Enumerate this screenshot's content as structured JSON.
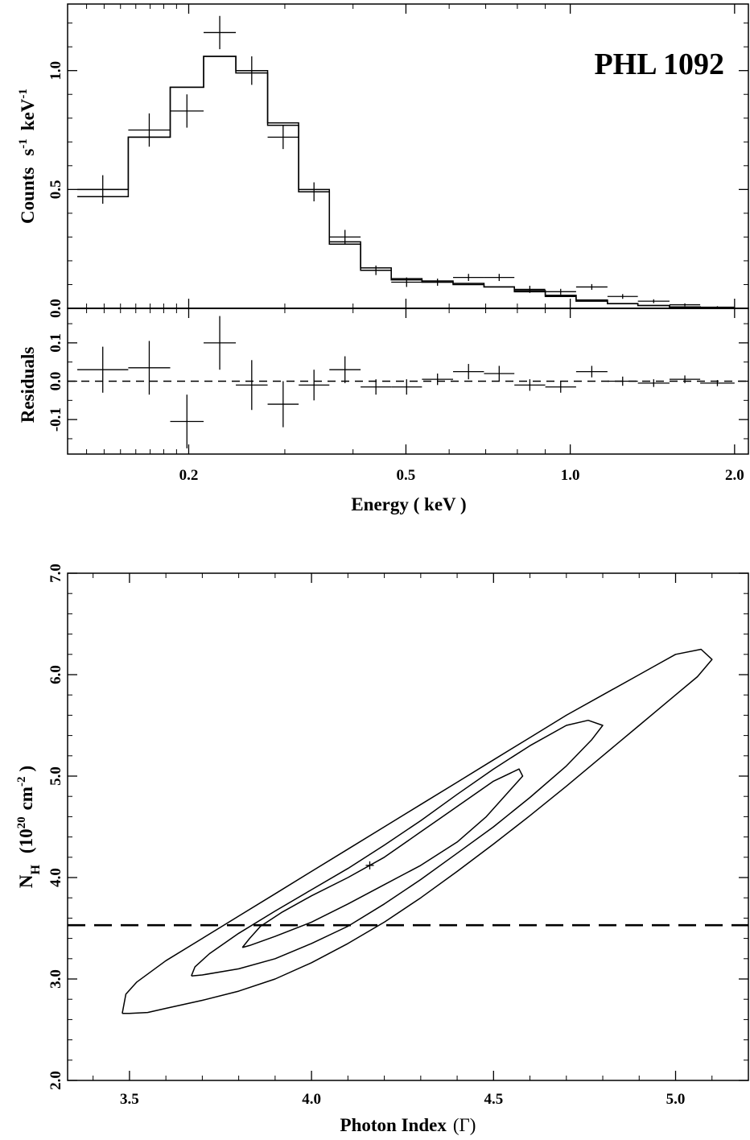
{
  "chart_data": [
    {
      "type": "step-spectrum",
      "panel": "spectrum",
      "annotation": "PHL 1092",
      "xlabel": "Energy  ( keV )",
      "ylabel": "Counts  s-1  keV-1",
      "ylabel_parts": {
        "a": "Counts",
        "b": "s",
        "c": "-1",
        "d": "keV",
        "e": "-1"
      },
      "x_scale": "log",
      "xlim": [
        0.12,
        2.12
      ],
      "ylim": [
        0.0,
        1.28
      ],
      "x_ticks": [
        0.2,
        0.5,
        1.0,
        2.0
      ],
      "x_tick_labels": [
        "0.2",
        "0.5",
        "1.0",
        "2.0"
      ],
      "y_ticks": [
        0.0,
        0.5,
        1.0
      ],
      "y_tick_labels": [
        "0.0",
        "0.5",
        "1.0"
      ],
      "model_bin_edges": [
        0.125,
        0.155,
        0.185,
        0.213,
        0.244,
        0.279,
        0.318,
        0.362,
        0.413,
        0.47,
        0.535,
        0.61,
        0.695,
        0.79,
        0.9,
        1.025,
        1.17,
        1.33,
        1.52,
        1.73,
        2.0
      ],
      "model_a": [
        0.47,
        0.72,
        0.93,
        1.06,
        0.99,
        0.78,
        0.49,
        0.27,
        0.16,
        0.12,
        0.11,
        0.1,
        0.09,
        0.07,
        0.05,
        0.03,
        0.02,
        0.012,
        0.006,
        0.003
      ],
      "model_b": [
        0.5,
        0.72,
        0.93,
        1.06,
        1.0,
        0.77,
        0.5,
        0.28,
        0.17,
        0.125,
        0.115,
        0.105,
        0.09,
        0.075,
        0.055,
        0.035,
        0.02,
        0.012,
        0.006,
        0.003
      ],
      "data": [
        {
          "x": 0.139,
          "xlo": 0.125,
          "xhi": 0.155,
          "y": 0.5,
          "err": 0.06
        },
        {
          "x": 0.17,
          "xlo": 0.155,
          "xhi": 0.185,
          "y": 0.75,
          "err": 0.07
        },
        {
          "x": 0.199,
          "xlo": 0.185,
          "xhi": 0.213,
          "y": 0.83,
          "err": 0.07
        },
        {
          "x": 0.228,
          "xlo": 0.213,
          "xhi": 0.244,
          "y": 1.16,
          "err": 0.07
        },
        {
          "x": 0.261,
          "xlo": 0.244,
          "xhi": 0.279,
          "y": 1.0,
          "err": 0.06
        },
        {
          "x": 0.298,
          "xlo": 0.279,
          "xhi": 0.318,
          "y": 0.72,
          "err": 0.05
        },
        {
          "x": 0.339,
          "xlo": 0.318,
          "xhi": 0.362,
          "y": 0.49,
          "err": 0.04
        },
        {
          "x": 0.387,
          "xlo": 0.362,
          "xhi": 0.413,
          "y": 0.3,
          "err": 0.03
        },
        {
          "x": 0.44,
          "xlo": 0.413,
          "xhi": 0.47,
          "y": 0.16,
          "err": 0.02
        },
        {
          "x": 0.5,
          "xlo": 0.47,
          "xhi": 0.535,
          "y": 0.11,
          "err": 0.02
        },
        {
          "x": 0.571,
          "xlo": 0.535,
          "xhi": 0.61,
          "y": 0.11,
          "err": 0.015
        },
        {
          "x": 0.651,
          "xlo": 0.61,
          "xhi": 0.695,
          "y": 0.13,
          "err": 0.015
        },
        {
          "x": 0.741,
          "xlo": 0.695,
          "xhi": 0.79,
          "y": 0.13,
          "err": 0.015
        },
        {
          "x": 0.843,
          "xlo": 0.79,
          "xhi": 0.9,
          "y": 0.08,
          "err": 0.015
        },
        {
          "x": 0.96,
          "xlo": 0.9,
          "xhi": 1.025,
          "y": 0.07,
          "err": 0.012
        },
        {
          "x": 1.095,
          "xlo": 1.025,
          "xhi": 1.17,
          "y": 0.09,
          "err": 0.012
        },
        {
          "x": 1.25,
          "xlo": 1.17,
          "xhi": 1.33,
          "y": 0.05,
          "err": 0.01
        },
        {
          "x": 1.42,
          "xlo": 1.33,
          "xhi": 1.52,
          "y": 0.03,
          "err": 0.008
        },
        {
          "x": 1.62,
          "xlo": 1.52,
          "xhi": 1.73,
          "y": 0.015,
          "err": 0.006
        },
        {
          "x": 1.86,
          "xlo": 1.73,
          "xhi": 2.0,
          "y": 0.005,
          "err": 0.004
        }
      ]
    },
    {
      "type": "residuals",
      "panel": "residuals",
      "ylabel": "Residuals",
      "x_scale": "log",
      "xlim": [
        0.12,
        2.12
      ],
      "ylim": [
        -0.19,
        0.19
      ],
      "y_ticks": [
        -0.1,
        0.0,
        0.1
      ],
      "y_tick_labels": [
        "-0.1",
        "0.0",
        "0.1"
      ],
      "zero_line": "dashed",
      "data": [
        {
          "xlo": 0.125,
          "xhi": 0.155,
          "y": 0.03,
          "err": 0.06
        },
        {
          "xlo": 0.155,
          "xhi": 0.185,
          "y": 0.035,
          "err": 0.07
        },
        {
          "xlo": 0.185,
          "xhi": 0.213,
          "y": -0.105,
          "err": 0.07
        },
        {
          "xlo": 0.213,
          "xhi": 0.244,
          "y": 0.1,
          "err": 0.07
        },
        {
          "xlo": 0.244,
          "xhi": 0.279,
          "y": -0.01,
          "err": 0.065
        },
        {
          "xlo": 0.279,
          "xhi": 0.318,
          "y": -0.06,
          "err": 0.06
        },
        {
          "xlo": 0.318,
          "xhi": 0.362,
          "y": -0.01,
          "err": 0.04
        },
        {
          "xlo": 0.362,
          "xhi": 0.413,
          "y": 0.03,
          "err": 0.035
        },
        {
          "xlo": 0.413,
          "xhi": 0.47,
          "y": -0.015,
          "err": 0.02
        },
        {
          "xlo": 0.47,
          "xhi": 0.535,
          "y": -0.015,
          "err": 0.02
        },
        {
          "xlo": 0.535,
          "xhi": 0.61,
          "y": 0.005,
          "err": 0.015
        },
        {
          "xlo": 0.61,
          "xhi": 0.695,
          "y": 0.025,
          "err": 0.02
        },
        {
          "xlo": 0.695,
          "xhi": 0.79,
          "y": 0.02,
          "err": 0.02
        },
        {
          "xlo": 0.79,
          "xhi": 0.9,
          "y": -0.01,
          "err": 0.015
        },
        {
          "xlo": 0.9,
          "xhi": 1.025,
          "y": -0.015,
          "err": 0.015
        },
        {
          "xlo": 1.025,
          "xhi": 1.17,
          "y": 0.025,
          "err": 0.015
        },
        {
          "xlo": 1.17,
          "xhi": 1.33,
          "y": 0.0,
          "err": 0.012
        },
        {
          "xlo": 1.33,
          "xhi": 1.52,
          "y": -0.005,
          "err": 0.01
        },
        {
          "xlo": 1.52,
          "xhi": 1.73,
          "y": 0.005,
          "err": 0.01
        },
        {
          "xlo": 1.73,
          "xhi": 2.0,
          "y": -0.005,
          "err": 0.008
        }
      ]
    },
    {
      "type": "contour",
      "panel": "contour",
      "xlabel": "Photon Index",
      "xlabel_symbol": "(Γ)",
      "ylabel_parts": {
        "a": "N",
        "b": "H",
        "c": "(10",
        "d": "20",
        "e": "cm",
        "f": "-2",
        "g": ")"
      },
      "xlim": [
        3.33,
        5.2
      ],
      "ylim": [
        2.0,
        7.0
      ],
      "x_ticks": [
        3.5,
        4.0,
        4.5,
        5.0
      ],
      "x_tick_labels": [
        "3.5",
        "4.0",
        "4.5",
        "5.0"
      ],
      "y_ticks": [
        2.0,
        3.0,
        4.0,
        5.0,
        6.0,
        7.0
      ],
      "y_tick_labels": [
        "2.0",
        "3.0",
        "4.0",
        "5.0",
        "6.0",
        "7.0"
      ],
      "best_fit": {
        "x": 4.16,
        "y": 4.12
      },
      "reference_line": {
        "y": 3.53,
        "style": "dashed"
      },
      "contours": [
        {
          "name": "inner",
          "points": [
            [
              3.81,
              3.31
            ],
            [
              3.83,
              3.4
            ],
            [
              3.86,
              3.52
            ],
            [
              3.92,
              3.66
            ],
            [
              4.0,
              3.82
            ],
            [
              4.1,
              4.0
            ],
            [
              4.2,
              4.2
            ],
            [
              4.3,
              4.45
            ],
            [
              4.4,
              4.7
            ],
            [
              4.5,
              4.95
            ],
            [
              4.57,
              5.07
            ],
            [
              4.58,
              5.0
            ],
            [
              4.55,
              4.88
            ],
            [
              4.48,
              4.6
            ],
            [
              4.4,
              4.35
            ],
            [
              4.3,
              4.12
            ],
            [
              4.2,
              3.93
            ],
            [
              4.1,
              3.74
            ],
            [
              4.0,
              3.56
            ],
            [
              3.9,
              3.42
            ],
            [
              3.83,
              3.33
            ],
            [
              3.81,
              3.31
            ]
          ]
        },
        {
          "name": "middle",
          "points": [
            [
              3.67,
              3.03
            ],
            [
              3.68,
              3.12
            ],
            [
              3.72,
              3.25
            ],
            [
              3.8,
              3.45
            ],
            [
              3.9,
              3.67
            ],
            [
              4.0,
              3.88
            ],
            [
              4.1,
              4.09
            ],
            [
              4.2,
              4.32
            ],
            [
              4.3,
              4.56
            ],
            [
              4.4,
              4.82
            ],
            [
              4.5,
              5.07
            ],
            [
              4.6,
              5.3
            ],
            [
              4.7,
              5.5
            ],
            [
              4.76,
              5.55
            ],
            [
              4.8,
              5.5
            ],
            [
              4.77,
              5.36
            ],
            [
              4.7,
              5.1
            ],
            [
              4.6,
              4.79
            ],
            [
              4.5,
              4.5
            ],
            [
              4.4,
              4.24
            ],
            [
              4.3,
              3.98
            ],
            [
              4.2,
              3.74
            ],
            [
              4.1,
              3.52
            ],
            [
              4.0,
              3.35
            ],
            [
              3.9,
              3.2
            ],
            [
              3.8,
              3.1
            ],
            [
              3.7,
              3.04
            ],
            [
              3.67,
              3.03
            ]
          ]
        },
        {
          "name": "outer",
          "points": [
            [
              3.48,
              2.66
            ],
            [
              3.49,
              2.85
            ],
            [
              3.52,
              2.97
            ],
            [
              3.6,
              3.18
            ],
            [
              3.7,
              3.4
            ],
            [
              3.8,
              3.62
            ],
            [
              3.9,
              3.84
            ],
            [
              4.0,
              4.06
            ],
            [
              4.1,
              4.28
            ],
            [
              4.2,
              4.5
            ],
            [
              4.3,
              4.72
            ],
            [
              4.4,
              4.94
            ],
            [
              4.5,
              5.16
            ],
            [
              4.6,
              5.38
            ],
            [
              4.7,
              5.6
            ],
            [
              4.8,
              5.8
            ],
            [
              4.9,
              6.0
            ],
            [
              4.95,
              6.1
            ],
            [
              5.0,
              6.2
            ],
            [
              5.07,
              6.25
            ],
            [
              5.1,
              6.15
            ],
            [
              5.06,
              5.98
            ],
            [
              5.0,
              5.8
            ],
            [
              4.9,
              5.5
            ],
            [
              4.8,
              5.2
            ],
            [
              4.7,
              4.9
            ],
            [
              4.6,
              4.61
            ],
            [
              4.5,
              4.33
            ],
            [
              4.4,
              4.06
            ],
            [
              4.3,
              3.8
            ],
            [
              4.2,
              3.56
            ],
            [
              4.1,
              3.35
            ],
            [
              4.0,
              3.16
            ],
            [
              3.9,
              3.0
            ],
            [
              3.8,
              2.88
            ],
            [
              3.7,
              2.79
            ],
            [
              3.6,
              2.71
            ],
            [
              3.55,
              2.67
            ],
            [
              3.5,
              2.66
            ],
            [
              3.48,
              2.66
            ]
          ]
        }
      ]
    }
  ]
}
